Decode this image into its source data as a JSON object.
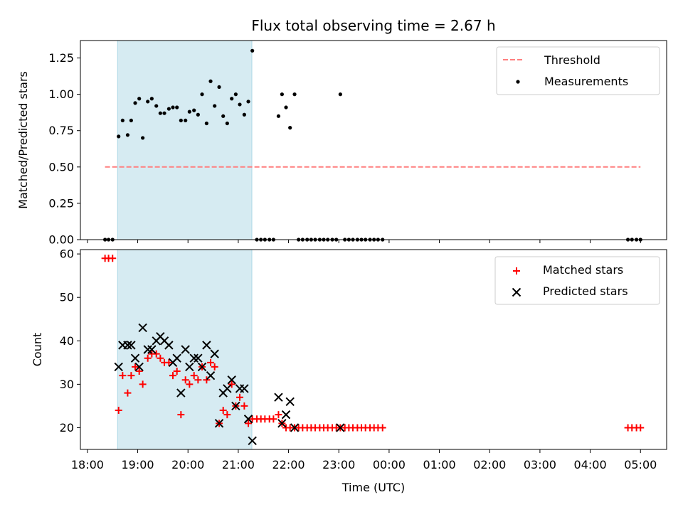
{
  "chart_data": [
    {
      "type": "scatter",
      "title": "Flux total observing time = 2.67 h",
      "xlabel": "",
      "ylabel": "Matched/Predicted stars",
      "xlim": [
        17.86,
        29.52
      ],
      "ylim": [
        0,
        1.37
      ],
      "yticks": [
        0.0,
        0.25,
        0.5,
        0.75,
        1.0,
        1.25
      ],
      "ytick_labels": [
        "0.00",
        "0.25",
        "0.50",
        "0.75",
        "1.00",
        "1.25"
      ],
      "highlight_span": [
        18.6,
        21.27
      ],
      "threshold": {
        "name": "Threshold",
        "value": 0.5,
        "x_start": 18.35,
        "x_end": 29.0,
        "color": "#ff7f7f"
      },
      "legend": [
        "Threshold",
        "Measurements"
      ],
      "legend_position": "top-right",
      "series": [
        {
          "name": "Measurements",
          "marker": "dot",
          "color": "#000000",
          "x": [
            18.35,
            18.42,
            18.5,
            18.62,
            18.7,
            18.8,
            18.87,
            18.95,
            19.03,
            19.1,
            19.2,
            19.28,
            19.37,
            19.45,
            19.53,
            19.62,
            19.7,
            19.78,
            19.86,
            19.95,
            20.03,
            20.12,
            20.2,
            20.28,
            20.37,
            20.45,
            20.53,
            20.62,
            20.7,
            20.78,
            20.87,
            20.95,
            21.03,
            21.12,
            21.2,
            21.28,
            21.37,
            21.45,
            21.53,
            21.62,
            21.7,
            21.8,
            21.87,
            21.95,
            22.03,
            22.12,
            22.2,
            22.28,
            22.37,
            22.45,
            22.53,
            22.62,
            22.7,
            22.78,
            22.87,
            22.95,
            23.03,
            23.12,
            23.2,
            23.28,
            23.37,
            23.45,
            23.53,
            23.62,
            23.7,
            23.78,
            23.87,
            28.75,
            28.83,
            28.92,
            29.0
          ],
          "y": [
            0,
            0,
            0,
            0.71,
            0.82,
            0.72,
            0.82,
            0.94,
            0.97,
            0.7,
            0.95,
            0.97,
            0.92,
            0.87,
            0.87,
            0.9,
            0.91,
            0.91,
            0.82,
            0.82,
            0.88,
            0.89,
            0.86,
            1.0,
            0.8,
            1.09,
            0.92,
            1.05,
            0.85,
            0.8,
            0.97,
            1.0,
            0.93,
            0.86,
            0.95,
            1.3,
            0,
            0,
            0,
            0,
            0,
            0.85,
            1.0,
            0.91,
            0.77,
            1.0,
            0,
            0,
            0,
            0,
            0,
            0,
            0,
            0,
            0,
            0,
            1.0,
            0,
            0,
            0,
            0,
            0,
            0,
            0,
            0,
            0,
            0,
            0,
            0,
            0,
            0
          ]
        }
      ]
    },
    {
      "type": "scatter",
      "title": "",
      "xlabel": "Time (UTC)",
      "ylabel": "Count",
      "xlim": [
        17.86,
        29.52
      ],
      "ylim": [
        15,
        61
      ],
      "yticks": [
        20,
        30,
        40,
        50,
        60
      ],
      "ytick_labels": [
        "20",
        "30",
        "40",
        "50",
        "60"
      ],
      "xticks": [
        18,
        19,
        20,
        21,
        22,
        23,
        24,
        25,
        26,
        27,
        28,
        29
      ],
      "xtick_labels": [
        "18:00",
        "19:00",
        "20:00",
        "21:00",
        "22:00",
        "23:00",
        "00:00",
        "01:00",
        "02:00",
        "03:00",
        "04:00",
        "05:00"
      ],
      "highlight_span": [
        18.6,
        21.27
      ],
      "legend": [
        "Matched stars",
        "Predicted stars"
      ],
      "legend_position": "top-right",
      "series": [
        {
          "name": "Matched stars",
          "marker": "+",
          "color": "#ff0000",
          "x": [
            18.35,
            18.42,
            18.5,
            18.62,
            18.7,
            18.8,
            18.87,
            18.95,
            19.03,
            19.1,
            19.2,
            19.28,
            19.37,
            19.45,
            19.53,
            19.62,
            19.7,
            19.78,
            19.86,
            19.95,
            20.03,
            20.12,
            20.2,
            20.28,
            20.37,
            20.45,
            20.53,
            20.62,
            20.7,
            20.78,
            20.87,
            20.95,
            21.03,
            21.12,
            21.2,
            21.28,
            21.37,
            21.45,
            21.53,
            21.62,
            21.7,
            21.8,
            21.87,
            21.95,
            22.03,
            22.12,
            22.2,
            22.28,
            22.37,
            22.45,
            22.53,
            22.62,
            22.7,
            22.78,
            22.87,
            22.95,
            23.03,
            23.12,
            23.2,
            23.28,
            23.37,
            23.45,
            23.53,
            23.62,
            23.7,
            23.78,
            23.87,
            28.75,
            28.83,
            28.92,
            29.0
          ],
          "y": [
            59,
            59,
            59,
            24,
            32,
            28,
            32,
            34,
            33,
            30,
            36,
            37,
            37,
            36,
            35,
            35,
            32,
            33,
            23,
            31,
            30,
            32,
            31,
            34,
            31,
            35,
            34,
            21,
            24,
            23,
            30,
            25,
            27,
            25,
            21,
            22,
            22,
            22,
            22,
            22,
            22,
            23,
            21,
            20,
            20,
            20,
            20,
            20,
            20,
            20,
            20,
            20,
            20,
            20,
            20,
            20,
            20,
            20,
            20,
            20,
            20,
            20,
            20,
            20,
            20,
            20,
            20,
            20,
            20,
            20,
            20
          ]
        },
        {
          "name": "Predicted stars",
          "marker": "x",
          "color": "#000000",
          "x": [
            18.62,
            18.7,
            18.8,
            18.87,
            18.95,
            19.03,
            19.1,
            19.2,
            19.28,
            19.37,
            19.45,
            19.53,
            19.62,
            19.7,
            19.78,
            19.86,
            19.95,
            20.03,
            20.12,
            20.2,
            20.28,
            20.37,
            20.45,
            20.53,
            20.62,
            20.7,
            20.78,
            20.87,
            20.95,
            21.03,
            21.12,
            21.2,
            21.28,
            21.8,
            21.87,
            21.95,
            22.03,
            22.12,
            23.03
          ],
          "y": [
            34,
            39,
            39,
            39,
            36,
            34,
            43,
            38,
            38,
            40,
            41,
            40,
            39,
            35,
            36,
            28,
            38,
            34,
            36,
            36,
            34,
            39,
            32,
            37,
            21,
            28,
            29,
            31,
            25,
            29,
            29,
            22,
            17,
            27,
            21,
            23,
            26,
            20,
            20
          ]
        }
      ]
    }
  ]
}
